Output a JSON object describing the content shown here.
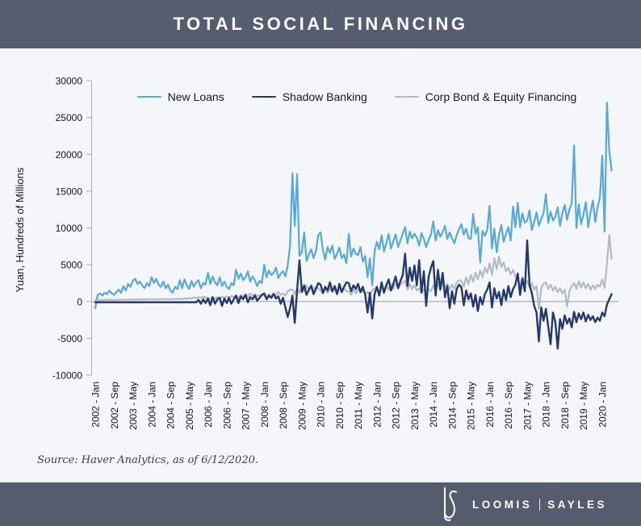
{
  "header": {
    "title": "TOTAL SOCIAL FINANCING"
  },
  "y_axis_label": "Yuan, Hundreds of Millions",
  "source": {
    "text": "Source: Haver Analytics, as of 6/12/2020."
  },
  "footer": {
    "wordmark_left": "LOOMIS",
    "wordmark_right": "SAYLES",
    "logo": "ls-monogram"
  },
  "colors": {
    "header_bar": "#555d6e",
    "background": "#f4f6f9",
    "new_loans": "#55aadb",
    "shadow_banking": "#24396b",
    "corp_bond": "#b3bac7",
    "axis": "#a9adb6",
    "zero_line": "#9aa0aa",
    "tick_text": "#15171a"
  },
  "chart_data": {
    "type": "line",
    "title": "TOTAL SOCIAL FINANCING",
    "xlabel": "",
    "ylabel": "Yuan, Hundreds of Millions",
    "ylim": [
      -10000,
      30000
    ],
    "y_ticks": [
      30000,
      25000,
      20000,
      15000,
      10000,
      5000,
      0,
      -5000,
      -10000
    ],
    "grid": "zero-line-only",
    "legend_position": "top",
    "x_start_month": "2002-01",
    "x_end_month": "2020-05",
    "x_tick_labels": [
      "2002 - Jan",
      "2002 - Sep",
      "2003 - May",
      "2004 - Jan",
      "2004 - Sep",
      "2005 - May",
      "2006 - Jan",
      "2006 - Sep",
      "2007 - May",
      "2008 - Jan",
      "2008 - Sep",
      "2009 - May",
      "2010 - Jan",
      "2010 - Sep",
      "2011 - May",
      "2012 - Jan",
      "2012 - Sep",
      "2013 - May",
      "2014 - Jan",
      "2014 - Sep",
      "2015 - May",
      "2016 - Jan",
      "2016 - Sep",
      "2017 - May",
      "2018 - Jan",
      "2018 - Sep",
      "2019 - May",
      "2020 - Jan"
    ],
    "x_tick_month_indices": [
      0,
      8,
      16,
      24,
      32,
      40,
      48,
      56,
      64,
      72,
      80,
      88,
      96,
      104,
      112,
      120,
      128,
      136,
      144,
      152,
      160,
      168,
      176,
      184,
      192,
      200,
      208,
      216
    ],
    "series": [
      {
        "name": "New Loans",
        "color": "#55aadb",
        "values": [
          -900,
          900,
          1100,
          800,
          1200,
          1000,
          1500,
          1100,
          900,
          1300,
          1600,
          1200,
          2100,
          1500,
          2400,
          2000,
          2800,
          3100,
          2400,
          2700,
          2200,
          1800,
          2500,
          2100,
          3300,
          2500,
          3100,
          2300,
          2000,
          2700,
          1800,
          2300,
          1500,
          1200,
          2000,
          1700,
          2900,
          1800,
          3000,
          2200,
          1700,
          2800,
          2000,
          2600,
          2900,
          1800,
          2500,
          2300,
          3900,
          2400,
          3400,
          2600,
          2200,
          3300,
          2100,
          2700,
          2000,
          1700,
          2500,
          2200,
          4300,
          3100,
          3800,
          2900,
          3300,
          4100,
          2700,
          3400,
          2900,
          2100,
          2800,
          2500,
          5000,
          3300,
          4200,
          3600,
          3900,
          4600,
          3200,
          3800,
          4100,
          3400,
          4900,
          7600,
          17400,
          10300,
          17300,
          6200,
          6700,
          9400,
          5500,
          6400,
          7100,
          5900,
          6800,
          9000,
          9400,
          7000,
          5700,
          7400,
          6600,
          7600,
          5800,
          6500,
          7300,
          5900,
          6400,
          5200,
          9200,
          6100,
          7200,
          6500,
          6300,
          7400,
          5400,
          6200,
          3300,
          5900,
          2200,
          6900,
          8100,
          7100,
          9000,
          6800,
          7900,
          9200,
          7200,
          8200,
          9100,
          7400,
          8300,
          9200,
          10100,
          7900,
          9500,
          8600,
          9200,
          8700,
          7600,
          9300,
          8500,
          7400,
          8400,
          9100,
          10900,
          8300,
          9700,
          8800,
          9400,
          10300,
          8500,
          9400,
          8600,
          7900,
          9000,
          9800,
          10500,
          9100,
          9900,
          8600,
          8500,
          11900,
          9200,
          10100,
          5300,
          9600,
          8900,
          9700,
          13000,
          7200,
          9900,
          6700,
          9000,
          10400,
          8100,
          9200,
          10100,
          8300,
          12900,
          10100,
          13400,
          10100,
          12000,
          10700,
          11000,
          12400,
          9700,
          10800,
          12100,
          10300,
          11200,
          12000,
          14600,
          10700,
          12200,
          11000,
          11500,
          12800,
          10300,
          12000,
          13100,
          11100,
          12500,
          13400,
          21200,
          10000,
          13200,
          10500,
          11800,
          13500,
          10100,
          12200,
          13700,
          10800,
          12800,
          14100,
          19800,
          9500,
          27000,
          20500,
          17800
        ]
      },
      {
        "name": "Shadow Banking",
        "color": "#24396b",
        "values": [
          -100,
          -100,
          -100,
          -100,
          -100,
          -100,
          -100,
          -100,
          -100,
          -100,
          -100,
          -100,
          -100,
          -100,
          -100,
          -100,
          -100,
          -100,
          -100,
          -100,
          -100,
          -100,
          -100,
          -100,
          -100,
          -100,
          -100,
          -100,
          -100,
          -100,
          -100,
          -100,
          -100,
          -100,
          -100,
          -100,
          -100,
          -100,
          -100,
          -100,
          -100,
          -100,
          -100,
          -100,
          200,
          -300,
          300,
          -200,
          400,
          -500,
          600,
          -300,
          300,
          500,
          -600,
          400,
          -200,
          500,
          -300,
          300,
          800,
          -200,
          700,
          300,
          900,
          -100,
          600,
          300,
          800,
          100,
          500,
          900,
          1100,
          300,
          800,
          500,
          1000,
          400,
          700,
          -300,
          500,
          -800,
          -2100,
          -900,
          800,
          -2900,
          1500,
          5600,
          1300,
          2200,
          900,
          1600,
          2100,
          1000,
          1700,
          2500,
          2300,
          1200,
          2000,
          1500,
          2600,
          1400,
          2100,
          1000,
          2400,
          1300,
          2000,
          2600,
          2500,
          1400,
          2200,
          1700,
          2400,
          1300,
          2000,
          900,
          -1500,
          1200,
          -2300,
          1000,
          2000,
          800,
          2600,
          1200,
          2200,
          3000,
          1500,
          2400,
          3400,
          1800,
          2800,
          3600,
          6500,
          2100,
          4600,
          2800,
          4900,
          2200,
          5600,
          1200,
          4100,
          -600,
          3300,
          4600,
          5500,
          800,
          4300,
          1600,
          3900,
          600,
          2100,
          -900,
          1400,
          -300,
          1700,
          2300,
          1900,
          -500,
          1500,
          300,
          1100,
          -700,
          900,
          -1300,
          600,
          -400,
          1000,
          1600,
          2600,
          -800,
          1800,
          400,
          1300,
          -500,
          1600,
          200,
          2100,
          600,
          1700,
          2300,
          3800,
          900,
          3100,
          1400,
          8300,
          2300,
          1100,
          -600,
          -1500,
          -5400,
          -800,
          -2600,
          -1000,
          -3400,
          -5800,
          -1500,
          -2800,
          -6400,
          -2400,
          -3700,
          -1900,
          -3000,
          -2300,
          -3500,
          -1400,
          -2800,
          -1600,
          -2400,
          -1500,
          -2700,
          -1800,
          -2500,
          -2000,
          -2800,
          -2200,
          -2600,
          -1500,
          -2000,
          -400,
          300,
          1000
        ]
      },
      {
        "name": "Corp Bond & Equity Financing",
        "color": "#b3bac7",
        "values": [
          200,
          150,
          250,
          180,
          220,
          200,
          260,
          190,
          230,
          210,
          250,
          220,
          300,
          200,
          280,
          240,
          300,
          260,
          320,
          250,
          280,
          260,
          310,
          280,
          350,
          250,
          320,
          280,
          350,
          300,
          340,
          280,
          320,
          300,
          360,
          320,
          400,
          300,
          450,
          350,
          500,
          400,
          550,
          450,
          600,
          500,
          650,
          550,
          500,
          350,
          550,
          400,
          600,
          450,
          650,
          500,
          700,
          550,
          750,
          600,
          800,
          500,
          900,
          600,
          1000,
          700,
          1100,
          800,
          1000,
          700,
          900,
          800,
          900,
          600,
          1000,
          700,
          1200,
          800,
          1300,
          900,
          1100,
          800,
          1400,
          1600,
          1600,
          1000,
          1800,
          1200,
          2000,
          1400,
          2200,
          1500,
          2300,
          1600,
          2000,
          1800,
          1500,
          1000,
          1700,
          1200,
          1800,
          1300,
          1600,
          1100,
          1700,
          1200,
          1800,
          1400,
          1400,
          900,
          1600,
          1100,
          1700,
          1200,
          1500,
          1000,
          1300,
          900,
          1500,
          1800,
          1600,
          1100,
          2000,
          1400,
          2200,
          1600,
          2400,
          1700,
          2500,
          1800,
          2300,
          2600,
          2800,
          1600,
          2400,
          1700,
          2200,
          1500,
          1800,
          1200,
          1600,
          1000,
          1700,
          1400,
          2200,
          1400,
          2500,
          1700,
          2600,
          1900,
          2400,
          1600,
          2300,
          1700,
          2600,
          2900,
          2800,
          2000,
          3300,
          2400,
          3600,
          2700,
          3900,
          3000,
          4200,
          3300,
          4600,
          3900,
          5200,
          3600,
          5900,
          4400,
          6100,
          4700,
          5300,
          4100,
          4600,
          3700,
          4300,
          3400,
          2900,
          2100,
          3300,
          2400,
          2800,
          1900,
          2500,
          1600,
          2100,
          -1000,
          1800,
          2400,
          2600,
          1700,
          2300,
          1500,
          2000,
          1300,
          1800,
          1100,
          1600,
          -700,
          1400,
          2100,
          2500,
          1700,
          2800,
          1900,
          2600,
          1800,
          2400,
          1600,
          2200,
          1700,
          2300,
          2000,
          3000,
          1800,
          5200,
          9000,
          5800
        ]
      }
    ]
  }
}
